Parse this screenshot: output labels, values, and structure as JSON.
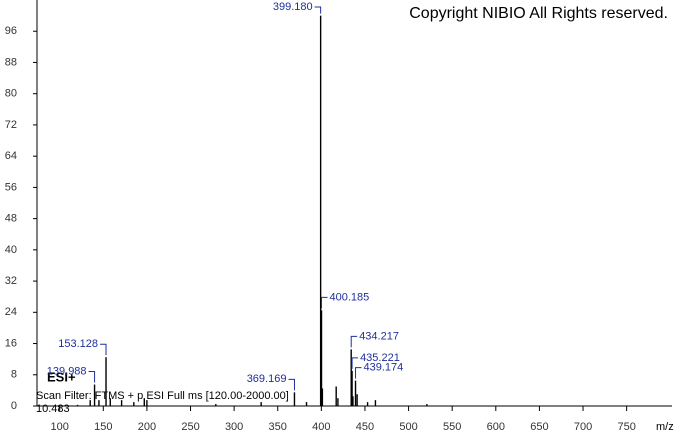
{
  "chart_data": {
    "type": "spectrum",
    "title": "Copyright NIBIO All Rights reserved.",
    "ion_mode": "ESI+",
    "scan_filter": "Scan Filter: FTMS + p ESI Full ms [120.00-2000.00]",
    "scale": "10.483",
    "x_label": "m/z",
    "color": "#000000",
    "label_color": "#1f2f9c",
    "x": [
      120.5,
      135,
      139.988,
      145,
      153.128,
      158,
      171,
      185,
      197,
      200,
      279,
      331,
      369.169,
      383,
      399.18,
      400.185,
      401.19,
      417,
      419,
      434.217,
      435.221,
      436.2,
      439.174,
      441,
      453,
      462,
      521
    ],
    "values": [
      0.3,
      1.5,
      5.5,
      1.5,
      12.5,
      2,
      1.5,
      1,
      2,
      1.5,
      0.5,
      1,
      3.5,
      1,
      100,
      24.5,
      4.5,
      5,
      2,
      14.5,
      9,
      2.5,
      6.5,
      3,
      1,
      1.5,
      0.5
    ],
    "peak_labels": [
      null,
      null,
      "139.988",
      null,
      "153.128",
      null,
      null,
      null,
      null,
      null,
      null,
      null,
      "369.169",
      null,
      "399.180",
      "400.185",
      null,
      null,
      null,
      "434.217",
      "435.221",
      null,
      "439.174",
      null,
      null,
      null,
      null
    ],
    "xlim": [
      74,
      802
    ],
    "ylim": [
      0,
      104
    ],
    "xticks": [
      100,
      150,
      200,
      250,
      300,
      350,
      400,
      450,
      500,
      550,
      600,
      650,
      700,
      750
    ],
    "yticks": [
      0,
      8,
      16,
      24,
      32,
      40,
      48,
      56,
      64,
      72,
      80,
      88,
      96
    ]
  }
}
